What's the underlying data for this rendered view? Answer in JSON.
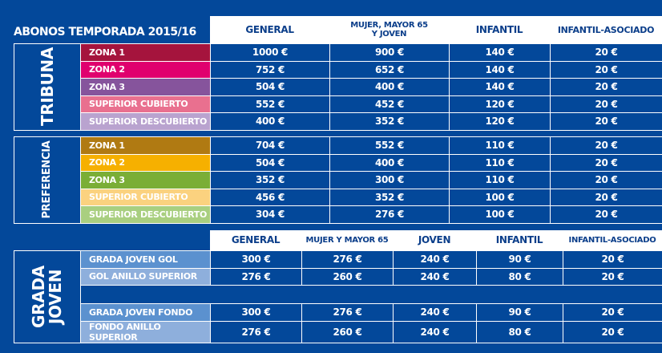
{
  "title": "ABONOS TEMPORADA 2015/16",
  "header1": [
    "GENERAL",
    "MUJER, MAYOR 65",
    "Y JOVEN",
    "INFANTIL",
    "INFANTIL-ASOCIADO"
  ],
  "tribuna": {
    "label": "TRIBUNA",
    "rows": [
      {
        "zone": "ZONA 1",
        "color": "#a5143d",
        "v": [
          "1000 €",
          "900 €",
          "140 €",
          "20 €"
        ]
      },
      {
        "zone": "ZONA 2",
        "color": "#e0006e",
        "v": [
          "752 €",
          "652 €",
          "140 €",
          "20 €"
        ]
      },
      {
        "zone": "ZONA 3",
        "color": "#86549c",
        "v": [
          "504 €",
          "400 €",
          "140 €",
          "20 €"
        ]
      },
      {
        "zone": "SUPERIOR CUBIERTO",
        "color": "#e9708f",
        "v": [
          "552 €",
          "452 €",
          "120 €",
          "20 €"
        ]
      },
      {
        "zone": "SUPERIOR DESCUBIERTO",
        "color": "#b9a3cf",
        "v": [
          "400 €",
          "352 €",
          "120 €",
          "20 €"
        ]
      }
    ]
  },
  "preferencia": {
    "label": "PREFERENCIA",
    "rows": [
      {
        "zone": "ZONA 1",
        "color": "#b07a12",
        "v": [
          "704 €",
          "552 €",
          "110 €",
          "20 €"
        ]
      },
      {
        "zone": "ZONA 2",
        "color": "#f6b000",
        "v": [
          "504 €",
          "400 €",
          "110 €",
          "20 €"
        ]
      },
      {
        "zone": "ZONA 3",
        "color": "#7aae36",
        "v": [
          "352 €",
          "300 €",
          "110 €",
          "20 €"
        ]
      },
      {
        "zone": "SUPERIOR CUBIERTO",
        "color": "#fbd27f",
        "v": [
          "456 €",
          "352 €",
          "100 €",
          "20 €"
        ]
      },
      {
        "zone": "SUPERIOR DESCUBIERTO",
        "color": "#a9cf80",
        "v": [
          "304 €",
          "276 €",
          "100 €",
          "20 €"
        ]
      }
    ]
  },
  "header2": [
    "GENERAL",
    "MUJER Y MAYOR 65",
    "JOVEN",
    "INFANTIL",
    "INFANTIL-ASOCIADO"
  ],
  "grada": {
    "label1": "GRADA",
    "label2": "JOVEN",
    "rows": [
      {
        "zone": "GRADA JOVEN GOL",
        "color": "#5b91cf",
        "v": [
          "300 €",
          "276 €",
          "240 €",
          "90 €",
          "20 €"
        ]
      },
      {
        "zone": "GOL ANILLO SUPERIOR",
        "color": "#8eafdc",
        "v": [
          "276 €",
          "260 €",
          "240 €",
          "80 €",
          "20 €"
        ]
      },
      {
        "zone": "GRADA JOVEN FONDO",
        "color": "#5b91cf",
        "v": [
          "300 €",
          "276 €",
          "240 €",
          "90 €",
          "20 €"
        ]
      },
      {
        "zone": "FONDO ANILLO SUPERIOR",
        "color": "#8eafdc",
        "v": [
          "276 €",
          "260 €",
          "240 €",
          "80 €",
          "20 €"
        ]
      }
    ]
  }
}
